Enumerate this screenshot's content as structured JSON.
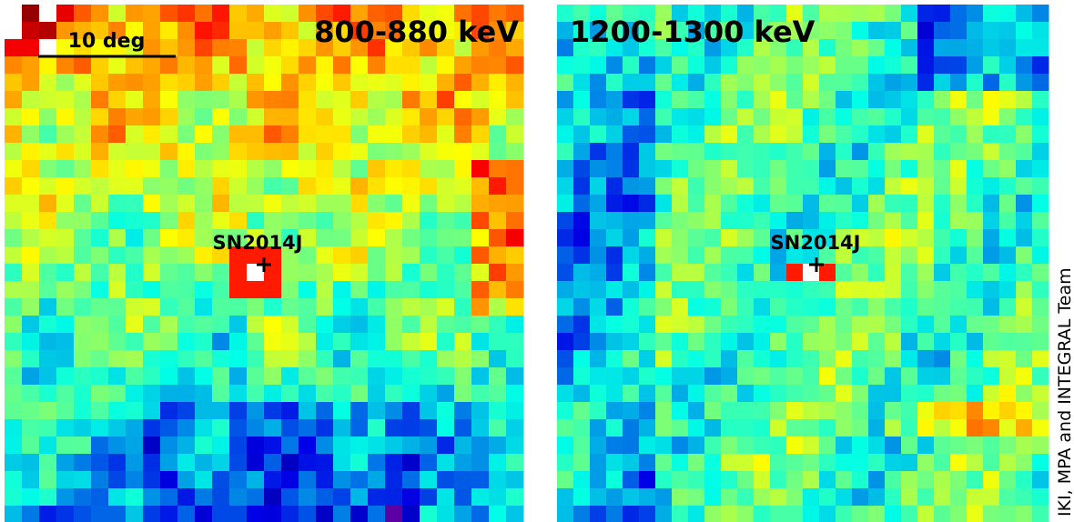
{
  "panels": [
    {
      "title": "800-880 keV",
      "scale_bar": "10 deg",
      "source": "SN2014J"
    },
    {
      "title": "1200-1300 keV",
      "source": "SN2014J"
    }
  ],
  "credit": "IKI, MPA and INTEGRAL Team"
}
